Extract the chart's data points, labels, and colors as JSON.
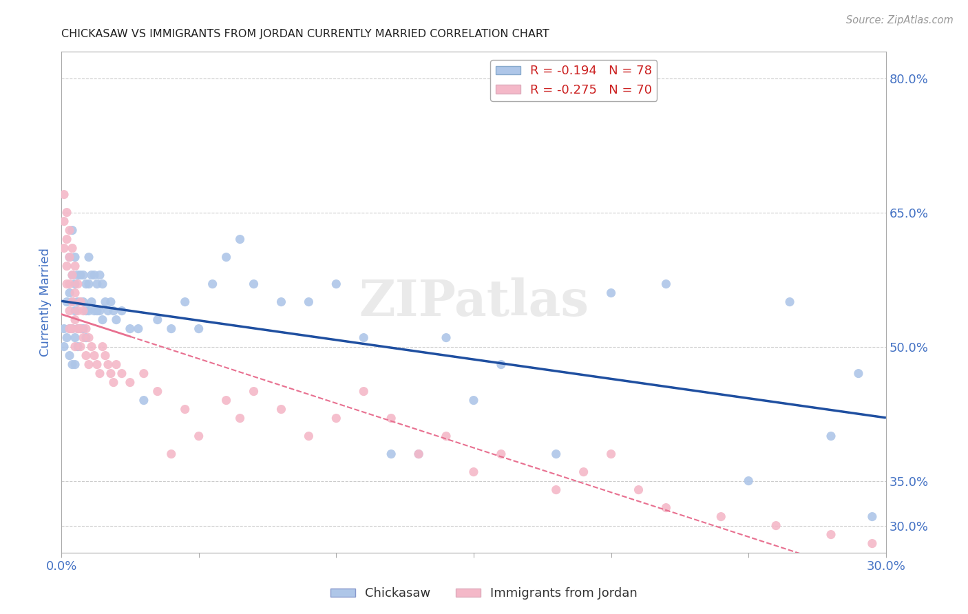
{
  "title": "CHICKASAW VS IMMIGRANTS FROM JORDAN CURRENTLY MARRIED CORRELATION CHART",
  "source": "Source: ZipAtlas.com",
  "ylabel": "Currently Married",
  "xlim": [
    0.0,
    0.3
  ],
  "ylim": [
    0.27,
    0.83
  ],
  "right_yticks": [
    0.8,
    0.65,
    0.5,
    0.35,
    0.3
  ],
  "right_yticklabels": [
    "80.0%",
    "65.0%",
    "50.0%",
    "35.0%",
    "30.0%"
  ],
  "xticks": [
    0.0,
    0.05,
    0.1,
    0.15,
    0.2,
    0.25,
    0.3
  ],
  "xticklabels": [
    "0.0%",
    "",
    "",
    "",
    "",
    "",
    "30.0%"
  ],
  "legend_entries": [
    {
      "label": "R = -0.194   N = 78",
      "color": "#aec6e8"
    },
    {
      "label": "R = -0.275   N = 70",
      "color": "#f4b8c8"
    }
  ],
  "title_color": "#222222",
  "source_color": "#999999",
  "tick_color": "#4472c4",
  "grid_color": "#cccccc",
  "blue_scatter_color": "#aec6e8",
  "pink_scatter_color": "#f4b8c8",
  "blue_line_color": "#1f4fa0",
  "pink_line_color": "#e87090",
  "watermark": "ZIPatlas",
  "chickasaw_x": [
    0.001,
    0.001,
    0.002,
    0.002,
    0.003,
    0.003,
    0.003,
    0.003,
    0.004,
    0.004,
    0.004,
    0.004,
    0.004,
    0.005,
    0.005,
    0.005,
    0.005,
    0.005,
    0.006,
    0.006,
    0.006,
    0.006,
    0.007,
    0.007,
    0.007,
    0.008,
    0.008,
    0.008,
    0.009,
    0.009,
    0.009,
    0.01,
    0.01,
    0.01,
    0.011,
    0.011,
    0.012,
    0.012,
    0.013,
    0.013,
    0.014,
    0.014,
    0.015,
    0.015,
    0.016,
    0.017,
    0.018,
    0.019,
    0.02,
    0.022,
    0.025,
    0.028,
    0.03,
    0.035,
    0.04,
    0.045,
    0.05,
    0.055,
    0.06,
    0.065,
    0.07,
    0.08,
    0.09,
    0.1,
    0.11,
    0.12,
    0.13,
    0.14,
    0.15,
    0.16,
    0.18,
    0.2,
    0.22,
    0.25,
    0.265,
    0.28,
    0.29,
    0.295
  ],
  "chickasaw_y": [
    0.52,
    0.5,
    0.55,
    0.51,
    0.6,
    0.56,
    0.52,
    0.49,
    0.63,
    0.58,
    0.55,
    0.52,
    0.48,
    0.6,
    0.57,
    0.54,
    0.51,
    0.48,
    0.58,
    0.55,
    0.52,
    0.5,
    0.58,
    0.55,
    0.52,
    0.58,
    0.55,
    0.52,
    0.57,
    0.54,
    0.51,
    0.6,
    0.57,
    0.54,
    0.58,
    0.55,
    0.58,
    0.54,
    0.57,
    0.54,
    0.58,
    0.54,
    0.57,
    0.53,
    0.55,
    0.54,
    0.55,
    0.54,
    0.53,
    0.54,
    0.52,
    0.52,
    0.44,
    0.53,
    0.52,
    0.55,
    0.52,
    0.57,
    0.6,
    0.62,
    0.57,
    0.55,
    0.55,
    0.57,
    0.51,
    0.38,
    0.38,
    0.51,
    0.44,
    0.48,
    0.38,
    0.56,
    0.57,
    0.35,
    0.55,
    0.4,
    0.47,
    0.31
  ],
  "jordan_x": [
    0.001,
    0.001,
    0.001,
    0.002,
    0.002,
    0.002,
    0.002,
    0.003,
    0.003,
    0.003,
    0.003,
    0.003,
    0.004,
    0.004,
    0.004,
    0.004,
    0.005,
    0.005,
    0.005,
    0.005,
    0.006,
    0.006,
    0.006,
    0.007,
    0.007,
    0.007,
    0.008,
    0.008,
    0.009,
    0.009,
    0.01,
    0.01,
    0.011,
    0.012,
    0.013,
    0.014,
    0.015,
    0.016,
    0.017,
    0.018,
    0.019,
    0.02,
    0.022,
    0.025,
    0.03,
    0.035,
    0.04,
    0.045,
    0.05,
    0.06,
    0.065,
    0.07,
    0.08,
    0.09,
    0.1,
    0.11,
    0.12,
    0.13,
    0.14,
    0.15,
    0.16,
    0.18,
    0.19,
    0.2,
    0.21,
    0.22,
    0.24,
    0.26,
    0.28,
    0.295
  ],
  "jordan_y": [
    0.67,
    0.64,
    0.61,
    0.65,
    0.62,
    0.59,
    0.57,
    0.63,
    0.6,
    0.57,
    0.54,
    0.52,
    0.61,
    0.58,
    0.55,
    0.52,
    0.59,
    0.56,
    0.53,
    0.5,
    0.57,
    0.54,
    0.52,
    0.55,
    0.52,
    0.5,
    0.54,
    0.51,
    0.52,
    0.49,
    0.51,
    0.48,
    0.5,
    0.49,
    0.48,
    0.47,
    0.5,
    0.49,
    0.48,
    0.47,
    0.46,
    0.48,
    0.47,
    0.46,
    0.47,
    0.45,
    0.38,
    0.43,
    0.4,
    0.44,
    0.42,
    0.45,
    0.43,
    0.4,
    0.42,
    0.45,
    0.42,
    0.38,
    0.4,
    0.36,
    0.38,
    0.34,
    0.36,
    0.38,
    0.34,
    0.32,
    0.31,
    0.3,
    0.29,
    0.28
  ]
}
